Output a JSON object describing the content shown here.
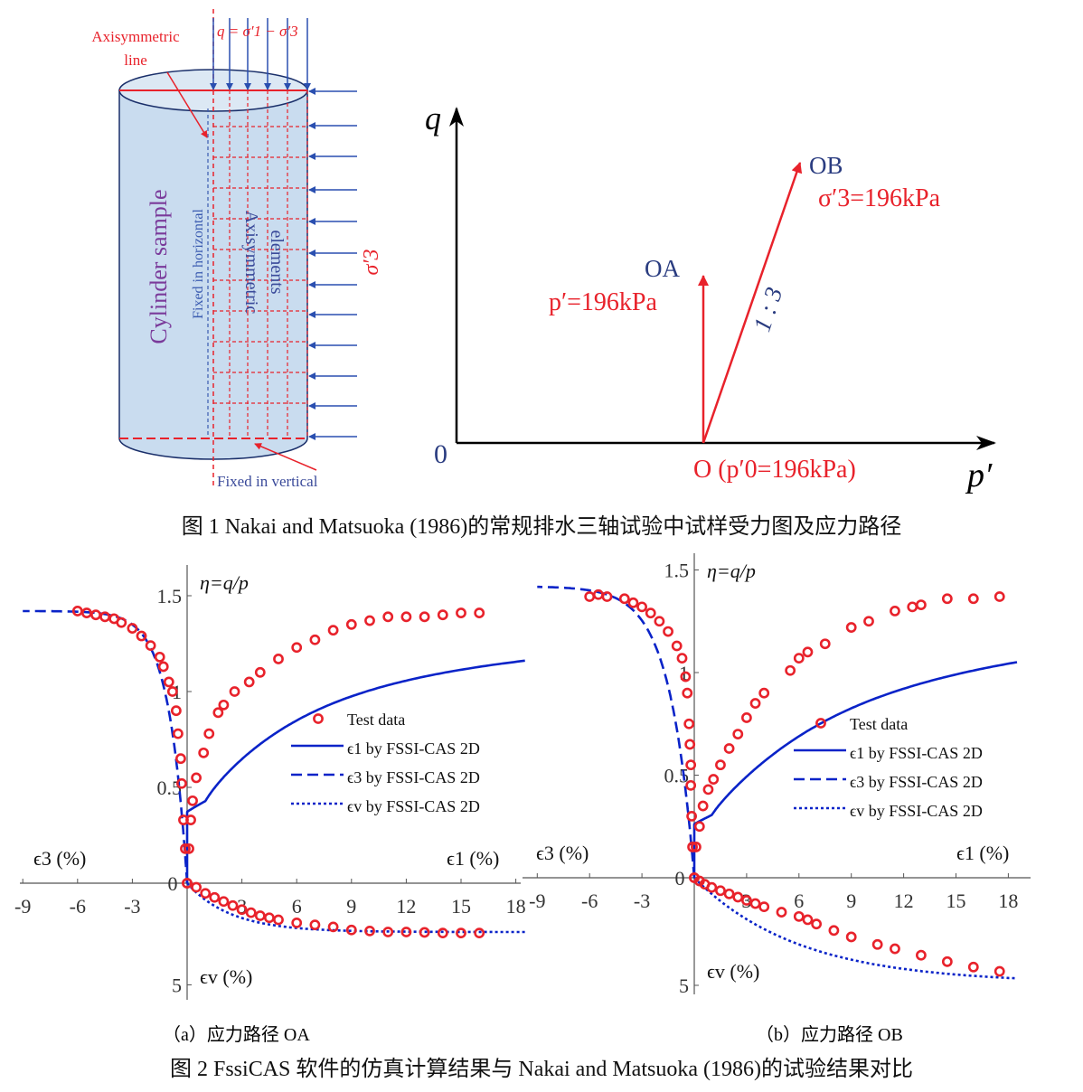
{
  "figure1": {
    "caption": "图 1 Nakai and Matsuoka (1986)的常规排水三轴试验中试样受力图及应力路径",
    "sample": {
      "title": "Cylinder sample",
      "axisym_line": [
        "Axisymmetric",
        "line"
      ],
      "q_formula": "q = σ′1 − σ′3",
      "fixed_h": "Fixed in horizontal",
      "elements": [
        "Axisymmetric",
        "elements"
      ],
      "fixed_v": "Fixed in vertical",
      "sigma3": "σ′3"
    },
    "stress_path": {
      "q_axis": "q",
      "p_axis": "p′",
      "origin": "0",
      "point_o": "O (p′0=196kPa)",
      "oa": "OA",
      "oa_condition": "p′=196kPa",
      "ob": "OB",
      "ob_condition": "σ′3=196kPa",
      "ratio": "1 : 3"
    }
  },
  "figure2": {
    "caption": "图 2 FssiCAS 软件的仿真计算结果与 Nakai and Matsuoka (1986)的试验结果对比",
    "sub_a": "（a）应力路径 OA",
    "sub_b": "（b）应力路径 OB"
  },
  "colors": {
    "red": "#e8222b",
    "blue": "#0a23c8",
    "navy": "#3a4a9a",
    "purple": "#7a3a9a",
    "fill": "#c9dcef"
  },
  "chart_data": [
    {
      "type": "scatter",
      "panel": "a",
      "eta_label": "η=q/p",
      "x_label_right": "ϵ1 (%)",
      "x_label_left": "ϵ3 (%)",
      "y_label_bottom": "ϵv (%)",
      "x_ticks": [
        "-9",
        "-6",
        "-3",
        "0",
        "3",
        "6",
        "9",
        "12",
        "15",
        "18"
      ],
      "y_ticks_up": [
        "0.5",
        "1",
        "1.5"
      ],
      "y_ticks_down": [
        "5"
      ],
      "xlim": [
        -9,
        18
      ],
      "ylim_eta": [
        0,
        1.5
      ],
      "ylim_ev": [
        0,
        5
      ],
      "legend": [
        "Test data",
        "ϵ1 by FSSI-CAS 2D",
        "ϵ3 by FSSI-CAS 2D",
        "ϵv by FSSI-CAS 2D"
      ],
      "model": {
        "eta_max": 1.42,
        "k1": 3.3,
        "k3": 1.0,
        "ev_max": 2.4,
        "kv": 3.0
      },
      "test_eta_e1": [
        [
          0,
          0
        ],
        [
          0.1,
          0.18
        ],
        [
          0.2,
          0.33
        ],
        [
          0.3,
          0.43
        ],
        [
          0.5,
          0.55
        ],
        [
          0.9,
          0.68
        ],
        [
          1.2,
          0.78
        ],
        [
          1.7,
          0.89
        ],
        [
          2,
          0.93
        ],
        [
          2.6,
          1.0
        ],
        [
          3.4,
          1.05
        ],
        [
          4,
          1.1
        ],
        [
          5,
          1.17
        ],
        [
          6,
          1.23
        ],
        [
          7,
          1.27
        ],
        [
          8,
          1.32
        ],
        [
          9,
          1.35
        ],
        [
          10,
          1.37
        ],
        [
          11,
          1.39
        ],
        [
          12,
          1.39
        ],
        [
          13,
          1.39
        ],
        [
          14,
          1.4
        ],
        [
          15,
          1.41
        ],
        [
          16,
          1.41
        ]
      ],
      "test_eta_e3": [
        [
          -0.1,
          0.18
        ],
        [
          -0.2,
          0.33
        ],
        [
          -0.3,
          0.52
        ],
        [
          -0.35,
          0.65
        ],
        [
          -0.5,
          0.78
        ],
        [
          -0.6,
          0.9
        ],
        [
          -0.8,
          1.0
        ],
        [
          -1.0,
          1.05
        ],
        [
          -1.3,
          1.13
        ],
        [
          -1.5,
          1.18
        ],
        [
          -2,
          1.24
        ],
        [
          -2.5,
          1.29
        ],
        [
          -3,
          1.33
        ],
        [
          -3.6,
          1.36
        ],
        [
          -4,
          1.38
        ],
        [
          -4.5,
          1.39
        ],
        [
          -5,
          1.4
        ],
        [
          -5.5,
          1.41
        ],
        [
          -6,
          1.42
        ]
      ],
      "test_ev": [
        [
          0,
          0
        ],
        [
          0.5,
          0.2
        ],
        [
          1,
          0.5
        ],
        [
          1.5,
          0.7
        ],
        [
          2,
          0.9
        ],
        [
          2.5,
          1.1
        ],
        [
          3,
          1.3
        ],
        [
          3.5,
          1.45
        ],
        [
          4,
          1.6
        ],
        [
          4.5,
          1.7
        ],
        [
          5,
          1.8
        ],
        [
          6,
          1.95
        ],
        [
          7,
          2.05
        ],
        [
          8,
          2.15
        ],
        [
          9,
          2.3
        ],
        [
          10,
          2.35
        ],
        [
          11,
          2.4
        ],
        [
          12,
          2.4
        ],
        [
          13,
          2.42
        ],
        [
          14,
          2.45
        ],
        [
          15,
          2.45
        ],
        [
          16,
          2.45
        ]
      ]
    },
    {
      "type": "scatter",
      "panel": "b",
      "eta_label": "η=q/p",
      "x_label_right": "ϵ1 (%)",
      "x_label_left": "ϵ3 (%)",
      "y_label_bottom": "ϵv (%)",
      "x_ticks": [
        "-9",
        "-6",
        "-3",
        "0",
        "3",
        "6",
        "9",
        "12",
        "15",
        "18"
      ],
      "y_ticks_up": [
        "0.5",
        "1",
        "1.5"
      ],
      "y_ticks_down": [
        "5"
      ],
      "xlim": [
        -9,
        18
      ],
      "ylim_eta": [
        0,
        1.5
      ],
      "ylim_ev": [
        0,
        5
      ],
      "legend": [
        "Test data",
        "ϵ1 by FSSI-CAS 2D",
        "ϵ3 by FSSI-CAS 2D",
        "ϵv by FSSI-CAS 2D"
      ],
      "model": {
        "eta_max": 1.42,
        "k1": 5.2,
        "k3": 1.4,
        "ev_max": 4.9,
        "kv": 7.5
      },
      "test_eta_e1": [
        [
          0,
          0
        ],
        [
          0.1,
          0.15
        ],
        [
          0.3,
          0.25
        ],
        [
          0.5,
          0.35
        ],
        [
          0.8,
          0.43
        ],
        [
          1.1,
          0.48
        ],
        [
          1.5,
          0.55
        ],
        [
          2,
          0.63
        ],
        [
          2.5,
          0.7
        ],
        [
          3,
          0.78
        ],
        [
          3.5,
          0.85
        ],
        [
          4,
          0.9
        ],
        [
          5.5,
          1.01
        ],
        [
          6,
          1.07
        ],
        [
          6.5,
          1.1
        ],
        [
          7.5,
          1.14
        ],
        [
          9,
          1.22
        ],
        [
          10,
          1.25
        ],
        [
          11.5,
          1.3
        ],
        [
          12.5,
          1.32
        ],
        [
          13,
          1.33
        ],
        [
          14.5,
          1.36
        ],
        [
          16,
          1.36
        ],
        [
          17.5,
          1.37
        ]
      ],
      "test_eta_e3": [
        [
          -0.1,
          0.15
        ],
        [
          -0.15,
          0.3
        ],
        [
          -0.2,
          0.45
        ],
        [
          -0.2,
          0.55
        ],
        [
          -0.25,
          0.65
        ],
        [
          -0.3,
          0.75
        ],
        [
          -0.4,
          0.9
        ],
        [
          -0.5,
          0.98
        ],
        [
          -0.7,
          1.07
        ],
        [
          -1,
          1.13
        ],
        [
          -1.5,
          1.2
        ],
        [
          -2,
          1.25
        ],
        [
          -2.5,
          1.29
        ],
        [
          -3,
          1.32
        ],
        [
          -3.5,
          1.34
        ],
        [
          -4,
          1.36
        ],
        [
          -5,
          1.37
        ],
        [
          -5.5,
          1.38
        ],
        [
          -6,
          1.37
        ]
      ],
      "test_ev": [
        [
          0,
          0
        ],
        [
          0.3,
          0.15
        ],
        [
          0.6,
          0.3
        ],
        [
          1,
          0.45
        ],
        [
          1.5,
          0.6
        ],
        [
          2,
          0.75
        ],
        [
          2.5,
          0.9
        ],
        [
          3,
          1.05
        ],
        [
          3.5,
          1.2
        ],
        [
          4,
          1.35
        ],
        [
          5,
          1.6
        ],
        [
          6,
          1.8
        ],
        [
          6.5,
          1.95
        ],
        [
          7,
          2.15
        ],
        [
          8,
          2.45
        ],
        [
          9,
          2.75
        ],
        [
          10.5,
          3.1
        ],
        [
          11.5,
          3.3
        ],
        [
          13,
          3.6
        ],
        [
          14.5,
          3.9
        ],
        [
          16,
          4.15
        ],
        [
          17.5,
          4.35
        ]
      ]
    }
  ]
}
